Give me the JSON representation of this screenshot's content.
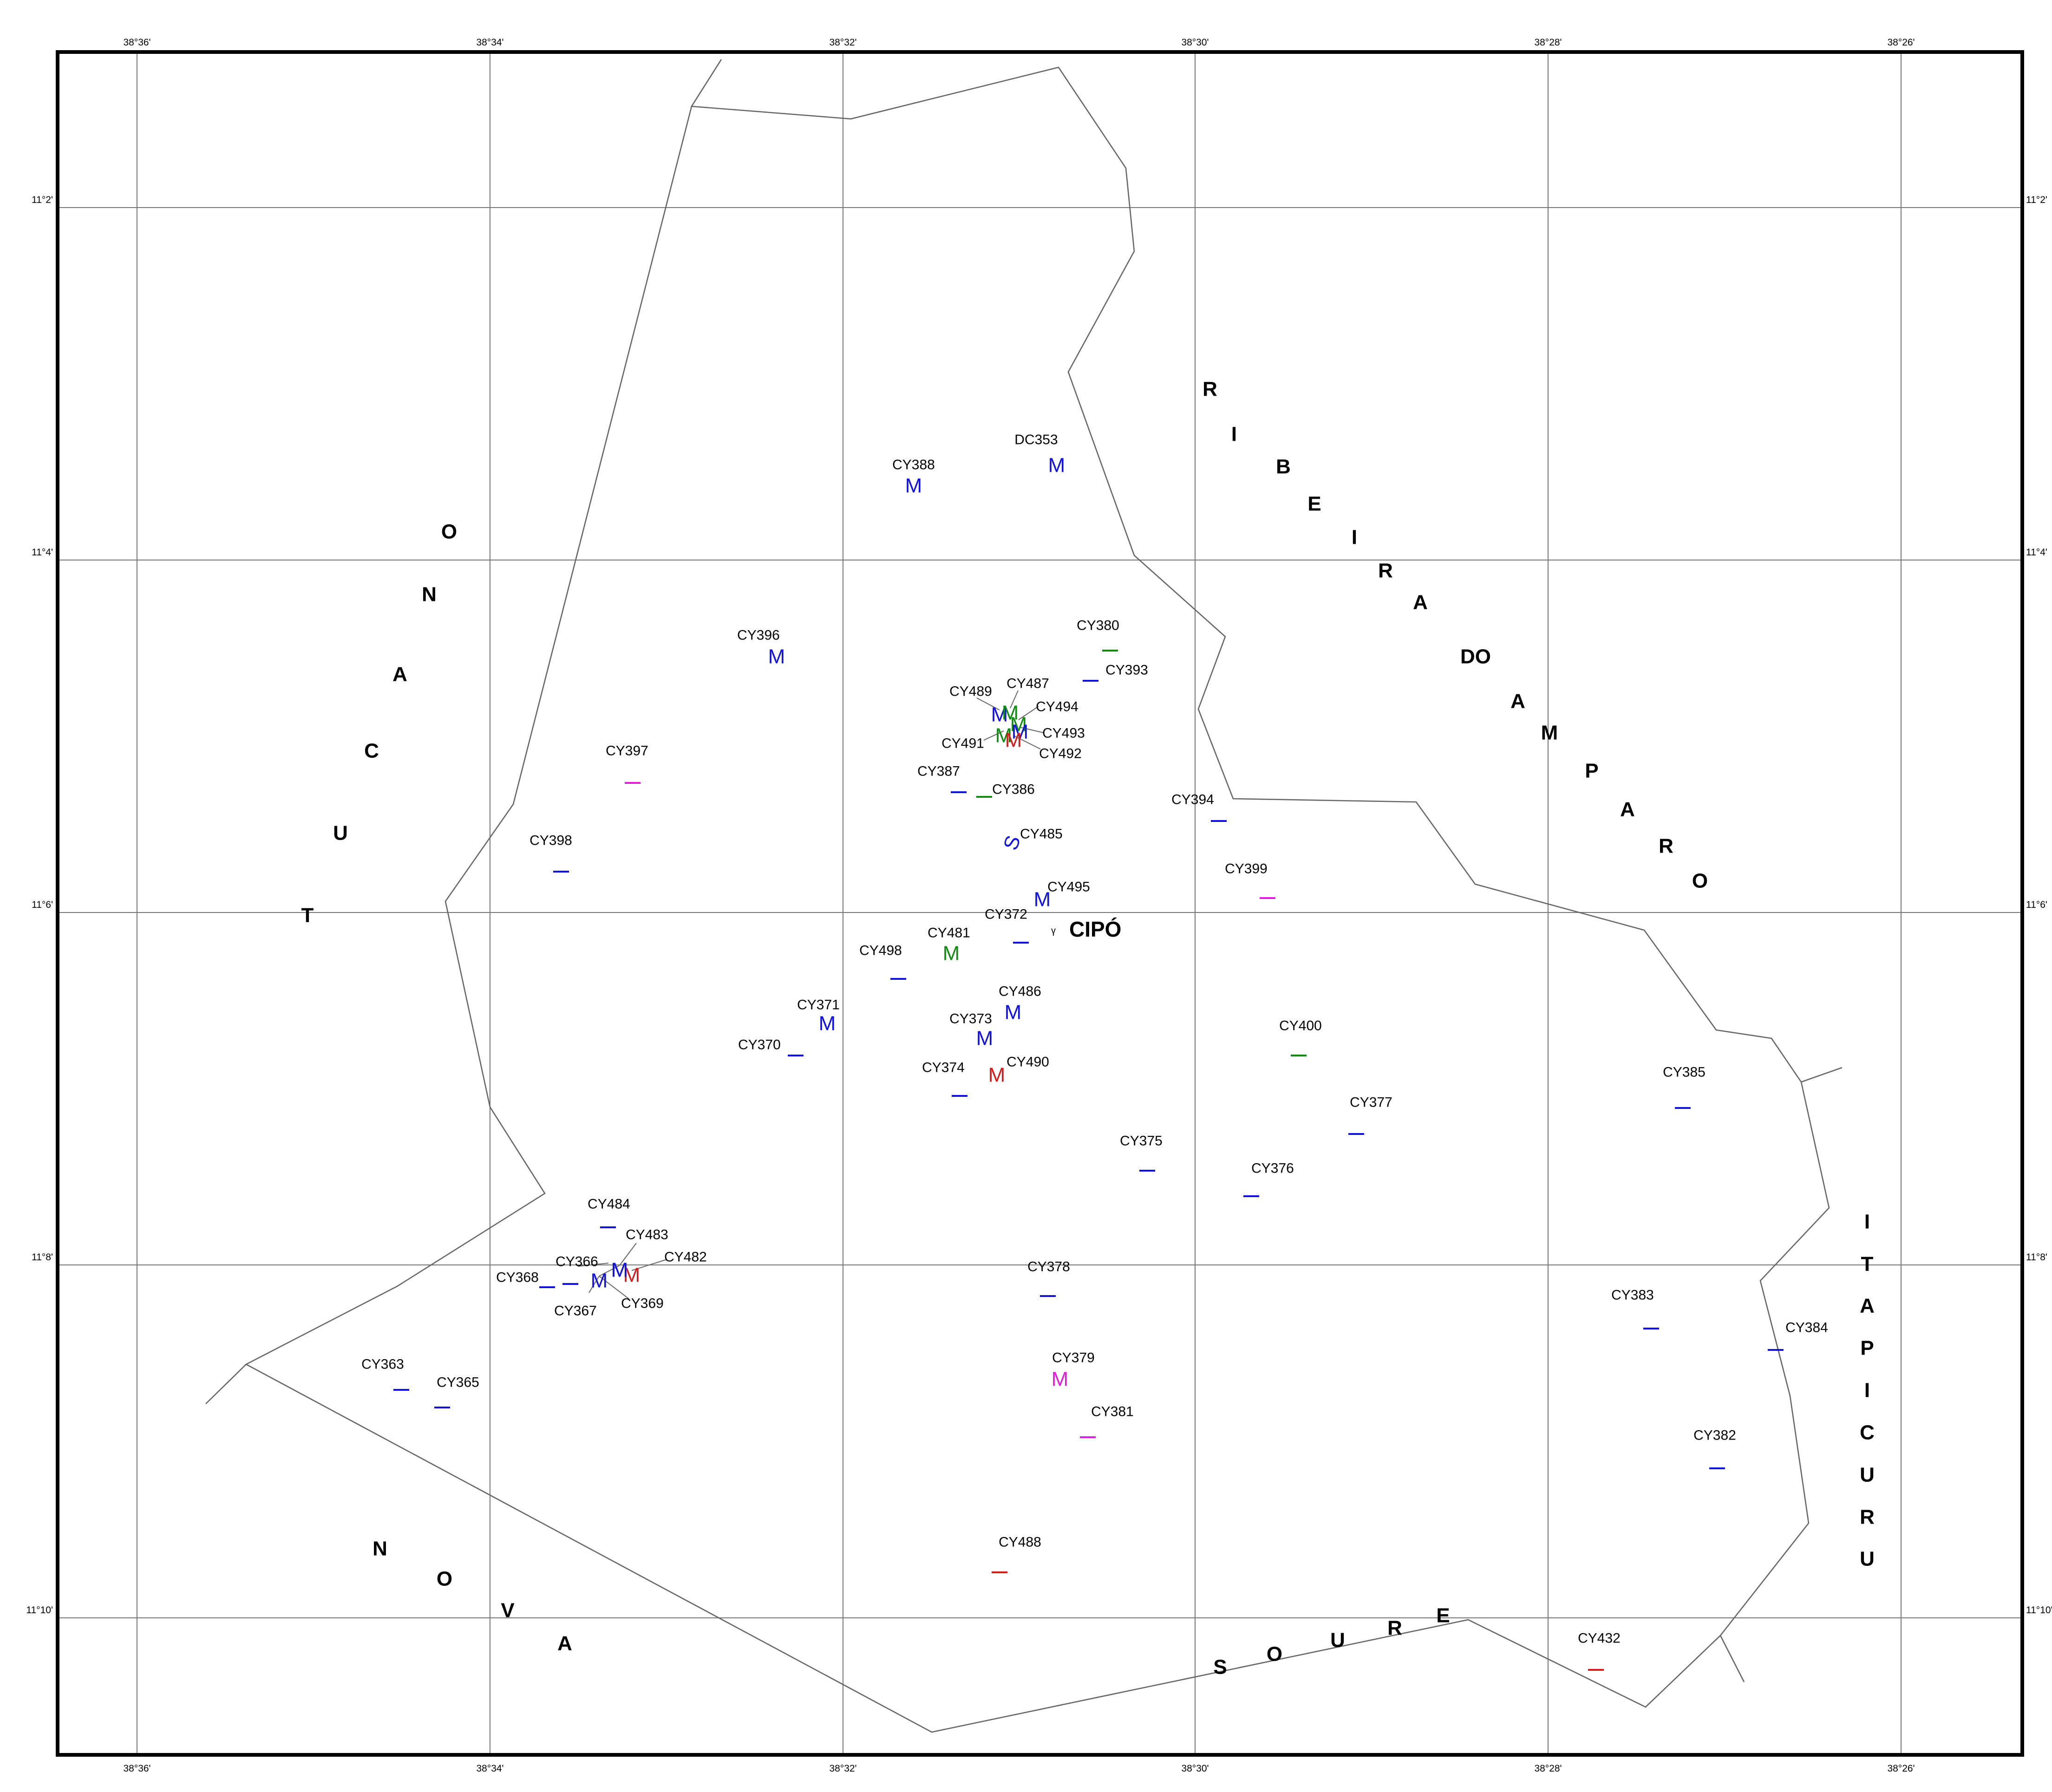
{
  "map": {
    "lon_ticks": [
      "38°36'",
      "38°34'",
      "38°32'",
      "38°30'",
      "38°28'",
      "38°26'"
    ],
    "lat_ticks": [
      "11°2'",
      "11°4'",
      "11°6'",
      "11°8'",
      "11°10'"
    ],
    "town": {
      "name": "CIPÓ",
      "marker": "ᵞ"
    },
    "regions": [
      {
        "name": "TUCANO",
        "letters": [
          "T",
          "U",
          "C",
          "A",
          "N",
          "O"
        ]
      },
      {
        "name": "RIBEIRA DO AMPARO",
        "letters": [
          "R",
          "I",
          "B",
          "E",
          "I",
          "R",
          "A",
          "DO",
          "A",
          "M",
          "P",
          "A",
          "R",
          "O"
        ]
      },
      {
        "name": "NOVA",
        "letters": [
          "N",
          "O",
          "V",
          "A"
        ]
      },
      {
        "name": "SOURE",
        "letters": [
          "S",
          "O",
          "U",
          "R",
          "E"
        ]
      },
      {
        "name": "ITAPICURU",
        "letters": [
          "I",
          "T",
          "A",
          "P",
          "I",
          "C",
          "U",
          "R",
          "U"
        ]
      }
    ],
    "colors": {
      "blue": "#1212d8",
      "green": "#138a13",
      "red": "#d41c1c",
      "magenta": "#e020d8",
      "grid": "#777777",
      "boundary": "#666666"
    },
    "sites": [
      {
        "id": "CY388",
        "sym": "M",
        "color": "blue"
      },
      {
        "id": "DC353",
        "sym": "M",
        "color": "blue"
      },
      {
        "id": "CY396",
        "sym": "M",
        "color": "blue"
      },
      {
        "id": "CY380",
        "sym": "—",
        "color": "green"
      },
      {
        "id": "CY393",
        "sym": "—",
        "color": "blue"
      },
      {
        "id": "CY489",
        "sym": "M",
        "color": "blue"
      },
      {
        "id": "CY487",
        "sym": "M",
        "color": "green"
      },
      {
        "id": "CY494",
        "sym": "M",
        "color": "green"
      },
      {
        "id": "CY491",
        "sym": "M",
        "color": "green"
      },
      {
        "id": "CY493",
        "sym": "M",
        "color": "blue"
      },
      {
        "id": "CY492",
        "sym": "M",
        "color": "red"
      },
      {
        "id": "CY397",
        "sym": "—",
        "color": "magenta"
      },
      {
        "id": "CY387",
        "sym": "—",
        "color": "blue"
      },
      {
        "id": "CY386",
        "sym": "—",
        "color": "green"
      },
      {
        "id": "CY394",
        "sym": "—",
        "color": "blue"
      },
      {
        "id": "CY485",
        "sym": "S",
        "color": "blue"
      },
      {
        "id": "CY398",
        "sym": "—",
        "color": "blue"
      },
      {
        "id": "CY399",
        "sym": "—",
        "color": "magenta"
      },
      {
        "id": "CY495",
        "sym": "M",
        "color": "blue"
      },
      {
        "id": "CY372",
        "sym": "—",
        "color": "blue"
      },
      {
        "id": "CY481",
        "sym": "M",
        "color": "green"
      },
      {
        "id": "CY498",
        "sym": "—",
        "color": "blue"
      },
      {
        "id": "CY486",
        "sym": "M",
        "color": "blue"
      },
      {
        "id": "CY371",
        "sym": "M",
        "color": "blue"
      },
      {
        "id": "CY373",
        "sym": "M",
        "color": "blue"
      },
      {
        "id": "CY400",
        "sym": "—",
        "color": "green"
      },
      {
        "id": "CY370",
        "sym": "—",
        "color": "blue"
      },
      {
        "id": "CY490",
        "sym": "M",
        "color": "red"
      },
      {
        "id": "CY374",
        "sym": "—",
        "color": "blue"
      },
      {
        "id": "CY385",
        "sym": "—",
        "color": "blue"
      },
      {
        "id": "CY377",
        "sym": "—",
        "color": "blue"
      },
      {
        "id": "CY375",
        "sym": "—",
        "color": "blue"
      },
      {
        "id": "CY376",
        "sym": "—",
        "color": "blue"
      },
      {
        "id": "CY484",
        "sym": "—",
        "color": "blue"
      },
      {
        "id": "CY483",
        "sym": "M",
        "color": "blue"
      },
      {
        "id": "CY482",
        "sym": "M",
        "color": "red"
      },
      {
        "id": "CY366",
        "sym": "—",
        "color": "blue"
      },
      {
        "id": "CY368",
        "sym": "—",
        "color": "blue"
      },
      {
        "id": "CY367",
        "sym": "M",
        "color": "blue"
      },
      {
        "id": "CY369",
        "sym": "M",
        "color": "blue"
      },
      {
        "id": "CY378",
        "sym": "—",
        "color": "blue"
      },
      {
        "id": "CY383",
        "sym": "—",
        "color": "blue"
      },
      {
        "id": "CY384",
        "sym": "—",
        "color": "blue"
      },
      {
        "id": "CY363",
        "sym": "—",
        "color": "blue"
      },
      {
        "id": "CY365",
        "sym": "—",
        "color": "blue"
      },
      {
        "id": "CY379",
        "sym": "M",
        "color": "magenta"
      },
      {
        "id": "CY381",
        "sym": "—",
        "color": "magenta"
      },
      {
        "id": "CY382",
        "sym": "—",
        "color": "blue"
      },
      {
        "id": "CY488",
        "sym": "—",
        "color": "red"
      },
      {
        "id": "CY432",
        "sym": "—",
        "color": "red"
      }
    ]
  }
}
